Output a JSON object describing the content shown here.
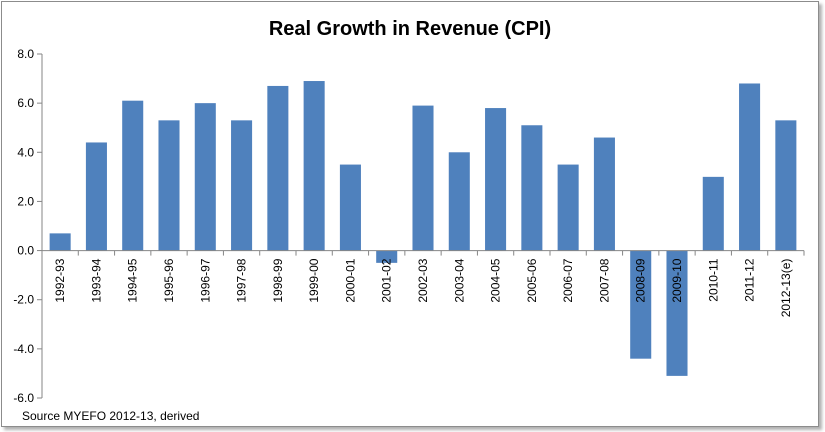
{
  "chart_data": {
    "type": "bar",
    "title": "Real Growth in Revenue (CPI)",
    "xlabel": "",
    "ylabel": "",
    "ylim": [
      -6,
      8
    ],
    "yticks": [
      "8.0",
      "6.0",
      "4.0",
      "2.0",
      "0.0",
      "-2.0",
      "-4.0",
      "-6.0"
    ],
    "grid": false,
    "bar_color": "#4f81bd",
    "categories": [
      "1992-93",
      "1993-94",
      "1994-95",
      "1995-96",
      "1996-97",
      "1997-98",
      "1998-99",
      "1999-00",
      "2000-01",
      "2001-02",
      "2002-03",
      "2003-04",
      "2004-05",
      "2005-06",
      "2006-07",
      "2007-08",
      "2008-09",
      "2009-10",
      "2010-11",
      "2011-12",
      "2012-13(e)"
    ],
    "values": [
      0.7,
      4.4,
      6.1,
      5.3,
      6.0,
      5.3,
      6.7,
      6.9,
      3.5,
      -0.5,
      5.9,
      4.0,
      5.8,
      5.1,
      3.5,
      4.6,
      -4.4,
      -5.1,
      3.0,
      6.8,
      5.3
    ],
    "source_note": "Source MYEFO 2012-13,  derived"
  }
}
